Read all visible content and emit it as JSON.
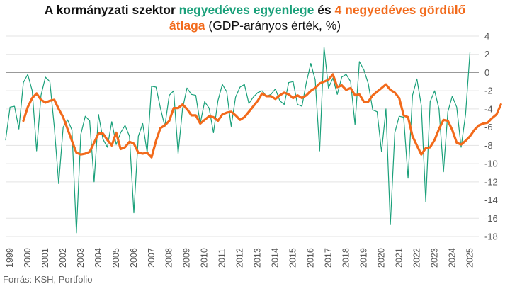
{
  "title": {
    "part1": "A kormányzati szektor ",
    "part2": "negyedéves egyenlege",
    "part3": " és ",
    "part4": "4 negyedéves gördülő átlaga",
    "part5": " (GDP-arányos érték, %)"
  },
  "source": "Forrás: KSH, Portfolio",
  "colors": {
    "quarterly": "#1aa07a",
    "rolling": "#f26a1b",
    "zero_line": "#999999",
    "grid": "#e3e3e3"
  },
  "chart_data": {
    "type": "line",
    "title": "A kormányzati szektor negyedéves egyenlege és 4 negyedéves gördülő átlaga (GDP-arányos érték, %)",
    "xlabel": "",
    "ylabel": "",
    "ylim": [
      -18,
      4
    ],
    "y_ticks": [
      4,
      2,
      0,
      -2,
      -4,
      -6,
      -8,
      -10,
      -12,
      -14,
      -16,
      -18
    ],
    "x_tick_labels": [
      "1999",
      "2000",
      "2001",
      "2002",
      "2003",
      "2004",
      "2005",
      "2006",
      "2007",
      "2008",
      "2009",
      "2010",
      "2011",
      "2012",
      "2013",
      "2014",
      "2015",
      "2016",
      "2017",
      "2018",
      "2019",
      "2020",
      "2021",
      "2022",
      "2023",
      "2024",
      "2025"
    ],
    "x_start_year": 1999,
    "grid": true,
    "series": [
      {
        "name": "negyedéves egyenleg",
        "start_quarter": 0,
        "values": [
          -7.4,
          -3.8,
          -3.7,
          -6.2,
          -1.1,
          -0.2,
          -2.0,
          -8.6,
          -2.5,
          -0.5,
          -1.0,
          -6.0,
          -12.2,
          -6.0,
          -5.2,
          -6.3,
          -17.6,
          -6.8,
          -4.8,
          -5.3,
          -12.0,
          -4.6,
          -7.3,
          -8.2,
          -5.4,
          -7.9,
          -6.6,
          -5.8,
          -7.0,
          -15.4,
          -7.0,
          -5.6,
          -8.8,
          -1.5,
          -1.6,
          -3.9,
          -5.9,
          -2.5,
          -2.0,
          -8.9,
          -4.0,
          -1.7,
          -2.4,
          -2.5,
          -5.6,
          -3.2,
          -3.9,
          -6.6,
          -3.1,
          -1.3,
          -2.1,
          -5.9,
          -2.7,
          -1.6,
          -1.3,
          -3.4,
          -2.7,
          -2.2,
          -2.0,
          -2.6,
          -2.4,
          -1.8,
          -3.1,
          -3.5,
          -1.1,
          -1.0,
          -3.5,
          -3.7,
          -1.1,
          1.0,
          -0.8,
          -8.6,
          2.8,
          -1.7,
          -0.6,
          -2.4,
          -0.5,
          -0.2,
          -1.0,
          -5.7,
          1.2,
          0.3,
          -1.2,
          -4.1,
          -4.3,
          -8.7,
          -4.0,
          -16.7,
          -6.6,
          -4.8,
          -4.9,
          -11.6,
          -2.5,
          -0.7,
          -3.6,
          -14.2,
          -3.2,
          -2.0,
          -4.0,
          -10.9,
          -4.3,
          -2.6,
          -3.8,
          -8.2,
          -4.6,
          2.2
        ]
      },
      {
        "name": "4 negyedéves gördülő átlag",
        "start_quarter": 4,
        "values": [
          -5.3,
          -3.8,
          -2.8,
          -2.3,
          -3.0,
          -3.3,
          -3.1,
          -3.0,
          -4.0,
          -4.9,
          -6.2,
          -7.5,
          -8.8,
          -9.0,
          -8.9,
          -8.7,
          -7.7,
          -6.7,
          -6.7,
          -7.4,
          -8.0,
          -6.6,
          -8.4,
          -8.2,
          -7.6,
          -7.8,
          -8.8,
          -8.9,
          -8.8,
          -9.3,
          -7.5,
          -6.1,
          -5.8,
          -5.3,
          -3.9,
          -3.9,
          -3.5,
          -4.0,
          -4.7,
          -4.7,
          -5.6,
          -5.2,
          -4.8,
          -4.9,
          -5.3,
          -4.6,
          -4.4,
          -4.3,
          -4.7,
          -5.2,
          -4.9,
          -4.3,
          -3.7,
          -3.1,
          -2.3,
          -2.6,
          -2.6,
          -2.9,
          -2.5,
          -2.2,
          -2.4,
          -2.8,
          -2.5,
          -2.8,
          -2.5,
          -2.0,
          -1.7,
          -1.2,
          -1.0,
          -0.8,
          -0.2,
          -1.6,
          -1.4,
          -1.9,
          -1.7,
          -2.5,
          -2.4,
          -3.2,
          -3.2,
          -2.5,
          -2.1,
          -1.7,
          -1.3,
          -1.9,
          -2.2,
          -2.8,
          -4.7,
          -4.9,
          -7.0,
          -8.0,
          -9.0,
          -8.3,
          -8.2,
          -7.4,
          -6.2,
          -5.2,
          -5.3,
          -6.3,
          -7.7,
          -7.9,
          -7.5,
          -7.0,
          -6.3,
          -5.8,
          -5.6,
          -5.5,
          -5.0,
          -4.6,
          -3.5
        ]
      }
    ]
  }
}
